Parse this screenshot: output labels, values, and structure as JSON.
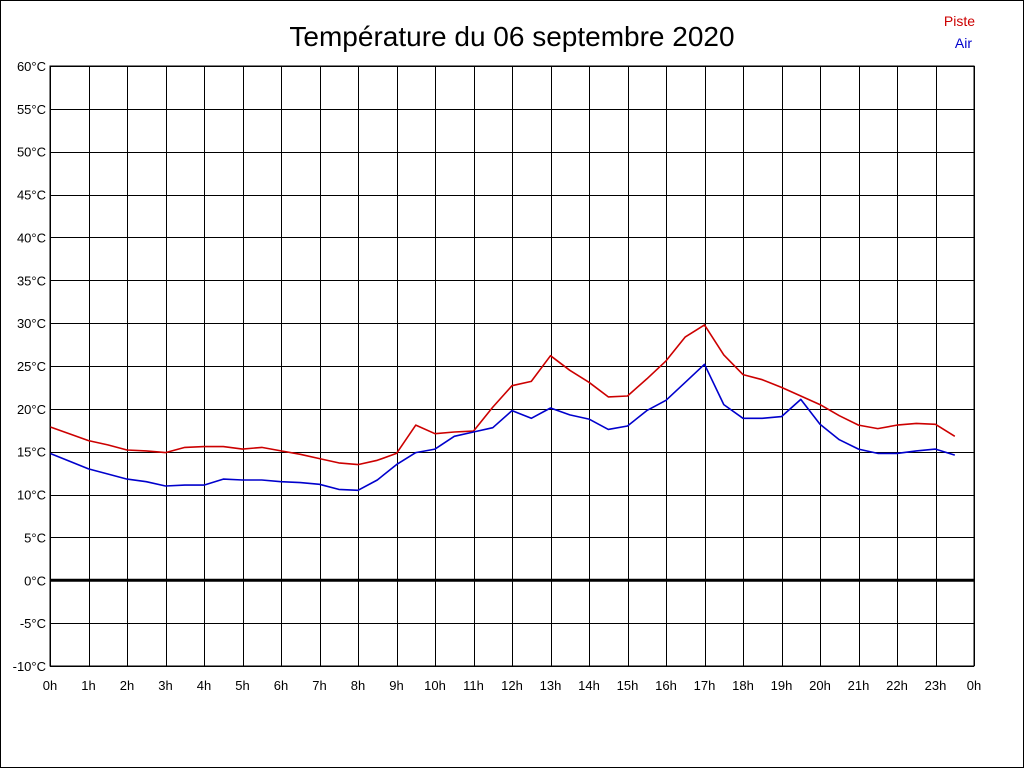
{
  "chart_data": {
    "type": "line",
    "title": "Température du 06 septembre 2020",
    "xlabel": "",
    "ylabel": "",
    "x_tick_labels": [
      "0h",
      "1h",
      "2h",
      "3h",
      "4h",
      "5h",
      "6h",
      "7h",
      "8h",
      "9h",
      "10h",
      "11h",
      "12h",
      "13h",
      "14h",
      "15h",
      "16h",
      "17h",
      "18h",
      "19h",
      "20h",
      "21h",
      "22h",
      "23h",
      "0h"
    ],
    "y_tick_labels": [
      "60°C",
      "55°C",
      "50°C",
      "45°C",
      "40°C",
      "35°C",
      "30°C",
      "25°C",
      "20°C",
      "15°C",
      "10°C",
      "5°C",
      "0°C",
      "-5°C",
      "-10°C"
    ],
    "xlim": [
      0,
      24
    ],
    "ylim": [
      -10,
      60
    ],
    "grid": true,
    "legend_position": "top-right",
    "x": [
      0,
      0.5,
      1,
      1.5,
      2,
      2.5,
      3,
      3.5,
      4,
      4.5,
      5,
      5.5,
      6,
      6.5,
      7,
      7.5,
      8,
      8.5,
      9,
      9.5,
      10,
      10.5,
      11,
      11.5,
      12,
      12.5,
      13,
      13.5,
      14,
      14.5,
      15,
      15.5,
      16,
      16.5,
      17,
      17.5,
      18,
      18.5,
      19,
      19.5,
      20,
      20.5,
      21,
      21.5,
      22,
      22.5,
      23,
      23.5
    ],
    "series": [
      {
        "name": "Piste",
        "color": "#cc0000",
        "values": [
          17.9,
          17.1,
          16.3,
          15.8,
          15.2,
          15.1,
          14.9,
          15.5,
          15.6,
          15.6,
          15.3,
          15.5,
          15.1,
          14.7,
          14.2,
          13.7,
          13.5,
          14.0,
          14.8,
          18.1,
          17.1,
          17.3,
          17.4,
          20.2,
          22.7,
          23.2,
          26.2,
          24.5,
          23.1,
          21.4,
          21.5,
          23.5,
          25.6,
          28.4,
          29.8,
          26.3,
          24.0,
          23.4,
          22.5,
          21.5,
          20.5,
          19.2,
          18.1,
          17.7,
          18.1,
          18.3,
          18.2,
          16.8
        ]
      },
      {
        "name": "Air",
        "color": "#0000cc",
        "values": [
          14.8,
          13.9,
          13.0,
          12.4,
          11.8,
          11.5,
          11.0,
          11.1,
          11.1,
          11.8,
          11.7,
          11.7,
          11.5,
          11.4,
          11.2,
          10.6,
          10.5,
          11.7,
          13.5,
          14.9,
          15.3,
          16.8,
          17.3,
          17.8,
          19.8,
          18.9,
          20.1,
          19.3,
          18.8,
          17.6,
          18.0,
          19.8,
          21.0,
          23.1,
          25.2,
          20.5,
          18.9,
          18.9,
          19.1,
          21.1,
          18.2,
          16.4,
          15.3,
          14.8,
          14.8,
          15.1,
          15.3,
          14.6
        ]
      }
    ]
  }
}
